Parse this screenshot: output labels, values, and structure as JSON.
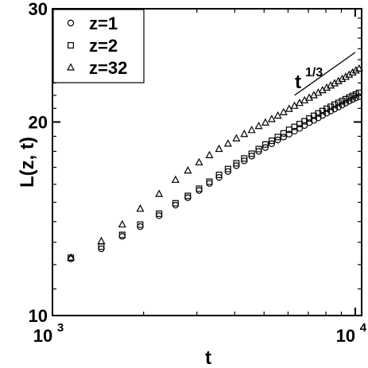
{
  "chart_data": {
    "type": "scatter",
    "title": "",
    "xlabel": "t",
    "ylabel": "L(z, t)",
    "xscale": "log",
    "yscale": "log",
    "xlim": [
      1000,
      10500
    ],
    "ylim": [
      10,
      30
    ],
    "grid": false,
    "legend_position": "top-left",
    "x_ticks": [
      {
        "value": 1000,
        "base": "10",
        "exp": "3"
      },
      {
        "value": 10000,
        "base": "10",
        "exp": "4"
      }
    ],
    "y_ticks": [
      {
        "value": 10,
        "label": "10"
      },
      {
        "value": 20,
        "label": "20"
      },
      {
        "value": 30,
        "label": "30"
      }
    ],
    "annotation": {
      "base": "t",
      "exp": "1/3",
      "x_range": [
        6300,
        10000
      ],
      "slope": 0.3333,
      "y_start": 22.0
    },
    "series": [
      {
        "name": "z=1",
        "marker": "circle",
        "x": [
          1150,
          1450,
          1700,
          1950,
          2250,
          2550,
          2800,
          3050,
          3300,
          3550,
          3800,
          4050,
          4300,
          4550,
          4800,
          5050,
          5300,
          5550,
          5800,
          6050,
          6300,
          6550,
          6800,
          7050,
          7300,
          7550,
          7800,
          8050,
          8300,
          8550,
          8800,
          9050,
          9300,
          9550,
          9800,
          10050,
          10300
        ],
        "y": [
          12.25,
          12.7,
          13.28,
          13.75,
          14.3,
          14.85,
          15.25,
          15.65,
          16.05,
          16.4,
          16.75,
          17.1,
          17.4,
          17.7,
          18.0,
          18.25,
          18.5,
          18.75,
          18.95,
          19.15,
          19.35,
          19.55,
          19.75,
          19.95,
          20.12,
          20.3,
          20.48,
          20.65,
          20.8,
          20.95,
          21.1,
          21.25,
          21.4,
          21.55,
          21.68,
          21.8,
          21.9
        ]
      },
      {
        "name": "z=2",
        "marker": "square",
        "x": [
          1150,
          1450,
          1700,
          1950,
          2250,
          2550,
          2800,
          3050,
          3300,
          3550,
          3800,
          4050,
          4300,
          4550,
          4800,
          5050,
          5300,
          5550,
          5800,
          6050,
          6300,
          6550,
          6800,
          7050,
          7300,
          7550,
          7800,
          8050,
          8300,
          8550,
          8800,
          9050,
          9300,
          9550,
          9800,
          10050,
          10300
        ],
        "y": [
          12.3,
          12.8,
          13.35,
          13.85,
          14.4,
          14.95,
          15.35,
          15.75,
          16.15,
          16.55,
          16.9,
          17.25,
          17.55,
          17.85,
          18.15,
          18.45,
          18.7,
          18.95,
          19.2,
          19.45,
          19.65,
          19.85,
          20.05,
          20.25,
          20.45,
          20.62,
          20.8,
          20.97,
          21.12,
          21.28,
          21.42,
          21.56,
          21.7,
          21.83,
          21.96,
          22.08,
          22.2
        ]
      },
      {
        "name": "z=32",
        "marker": "triangle",
        "x": [
          1150,
          1450,
          1700,
          1950,
          2250,
          2550,
          2800,
          3050,
          3300,
          3550,
          3800,
          4050,
          4300,
          4550,
          4800,
          5050,
          5300,
          5550,
          5800,
          6050,
          6300,
          6550,
          6800,
          7050,
          7300,
          7550,
          7800,
          8050,
          8300,
          8550,
          8800,
          9050,
          9300,
          9550,
          9800,
          10050,
          10300
        ],
        "y": [
          12.3,
          13.05,
          13.85,
          14.65,
          15.45,
          16.25,
          16.8,
          17.3,
          17.75,
          18.15,
          18.5,
          18.85,
          19.15,
          19.42,
          19.7,
          19.95,
          20.2,
          20.45,
          20.7,
          20.95,
          21.18,
          21.4,
          21.6,
          21.8,
          22.0,
          22.2,
          22.4,
          22.6,
          22.78,
          22.96,
          23.14,
          23.32,
          23.5,
          23.68,
          23.86,
          24.04,
          24.2
        ]
      }
    ]
  }
}
